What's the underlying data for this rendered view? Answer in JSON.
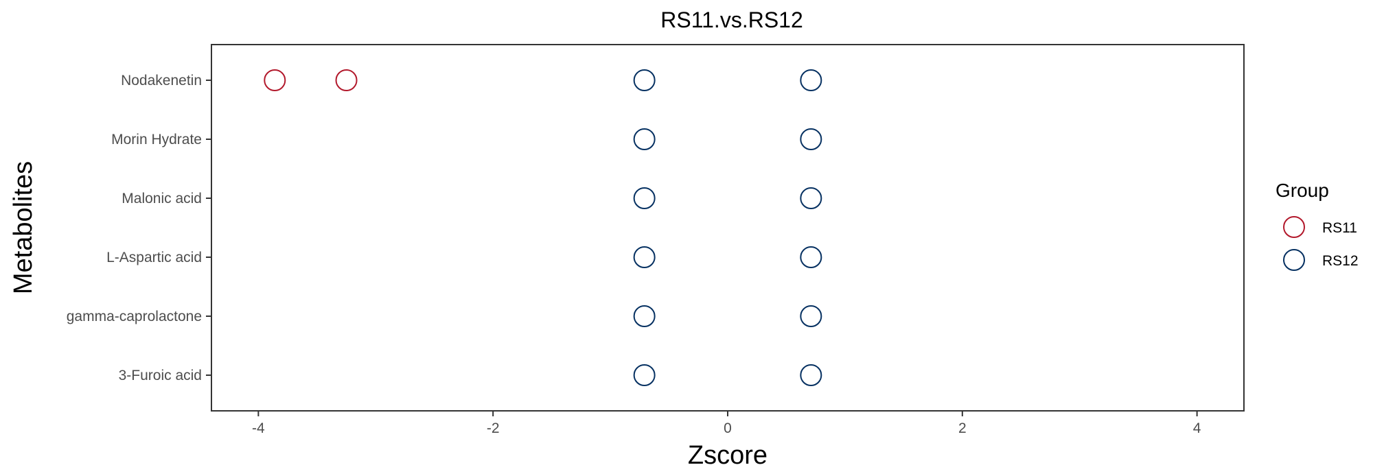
{
  "chart_data": {
    "type": "scatter",
    "title": "RS11.vs.RS12",
    "xlabel": "Zscore",
    "ylabel": "Metabolites",
    "xlim": [
      -4.4,
      4.4
    ],
    "x_ticks": [
      -4,
      -2,
      0,
      2,
      4
    ],
    "x_tick_labels": [
      "-4",
      "-2",
      "0",
      "2",
      "4"
    ],
    "categories": [
      "Nodakenetin",
      "Morin Hydrate",
      "Malonic acid",
      "L-Aspartic acid",
      "gamma-caprolactone",
      "3-Furoic acid"
    ],
    "grid": false,
    "legend": {
      "title": "Group",
      "position": "right"
    },
    "series": [
      {
        "name": "RS11",
        "color": "#B2182B",
        "points": [
          {
            "y": "Nodakenetin",
            "x": -3.86
          },
          {
            "y": "Nodakenetin",
            "x": -3.25
          }
        ]
      },
      {
        "name": "RS12",
        "color": "#053061",
        "points": [
          {
            "y": "Nodakenetin",
            "x": -0.71
          },
          {
            "y": "Nodakenetin",
            "x": 0.71
          },
          {
            "y": "Morin Hydrate",
            "x": -0.71
          },
          {
            "y": "Morin Hydrate",
            "x": 0.71
          },
          {
            "y": "Malonic acid",
            "x": -0.71
          },
          {
            "y": "Malonic acid",
            "x": 0.71
          },
          {
            "y": "L-Aspartic acid",
            "x": -0.71
          },
          {
            "y": "L-Aspartic acid",
            "x": 0.71
          },
          {
            "y": "gamma-caprolactone",
            "x": -0.71
          },
          {
            "y": "gamma-caprolactone",
            "x": 0.71
          },
          {
            "y": "3-Furoic acid",
            "x": -0.71
          },
          {
            "y": "3-Furoic acid",
            "x": 0.71
          }
        ]
      }
    ]
  }
}
